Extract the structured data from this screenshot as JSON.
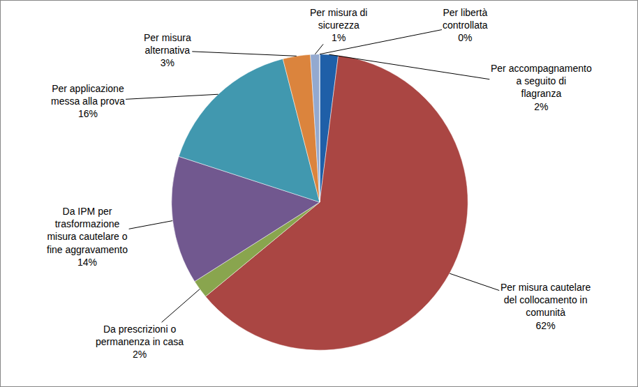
{
  "chart_data": {
    "type": "pie",
    "categories": [
      "Per accompagnamento a seguito di flagranza",
      "Per misura cautelare del collocamento in comunità",
      "Da prescrizioni o permanenza in casa",
      "Da IPM per trasformazione misura cautelare o fine aggravamento",
      "Per applicazione messa alla prova",
      "Per misura alternativa",
      "Per misura di sicurezza",
      "Per libertà controllata"
    ],
    "values": [
      2,
      62,
      2,
      14,
      16,
      3,
      1,
      0
    ],
    "value_labels": [
      "2%",
      "62%",
      "2%",
      "14%",
      "16%",
      "3%",
      "1%",
      "0%"
    ],
    "colors": [
      "#1f5fa8",
      "#aa4643",
      "#89a54e",
      "#71588f",
      "#4198af",
      "#db843d",
      "#93a9cf",
      "#d19392"
    ],
    "data_labels": true
  }
}
